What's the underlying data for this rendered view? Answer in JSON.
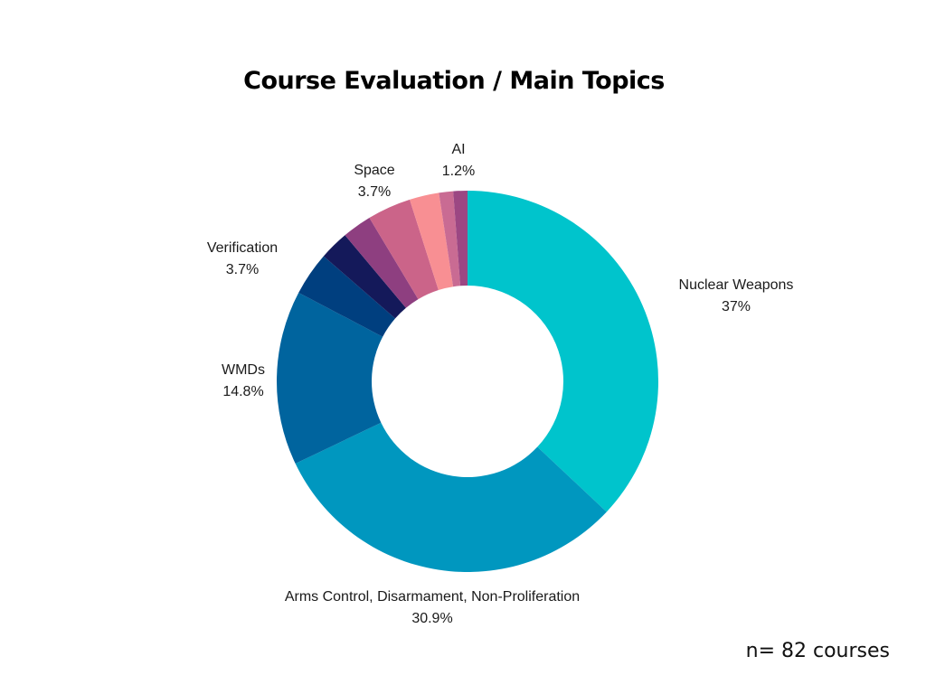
{
  "title": "Course Evaluation / Main Topics",
  "footnote": "n= 82 courses",
  "chart_data": {
    "type": "pie",
    "variant": "donut",
    "title": "Course Evaluation / Main Topics",
    "slices": [
      {
        "label": "Nuclear Weapons",
        "value": 37,
        "display": "37%",
        "color": "#00C4CC",
        "labeled": true
      },
      {
        "label": "Arms Control, Disarmament, Non-Proliferation",
        "value": 30.9,
        "display": "30.9%",
        "color": "#0097BF",
        "labeled": true
      },
      {
        "label": "WMDs",
        "value": 14.8,
        "display": "14.8%",
        "color": "#00649E",
        "labeled": true
      },
      {
        "label": "Verification",
        "value": 3.7,
        "display": "3.7%",
        "color": "#003F7F",
        "labeled": true
      },
      {
        "label": "",
        "value": 2.5,
        "display": "",
        "color": "#14195A",
        "labeled": false
      },
      {
        "label": "",
        "value": 2.5,
        "display": "",
        "color": "#8E3F80",
        "labeled": false
      },
      {
        "label": "Space",
        "value": 3.7,
        "display": "3.7%",
        "color": "#CB6489",
        "labeled": true
      },
      {
        "label": "",
        "value": 2.5,
        "display": "",
        "color": "#F88F93",
        "labeled": false
      },
      {
        "label": "",
        "value": 1.2,
        "display": "",
        "color": "#C96B93",
        "labeled": false
      },
      {
        "label": "AI",
        "value": 1.2,
        "display": "1.2%",
        "color": "#9C4783",
        "labeled": true
      }
    ],
    "start_angle_deg": 0,
    "direction": "clockwise"
  }
}
